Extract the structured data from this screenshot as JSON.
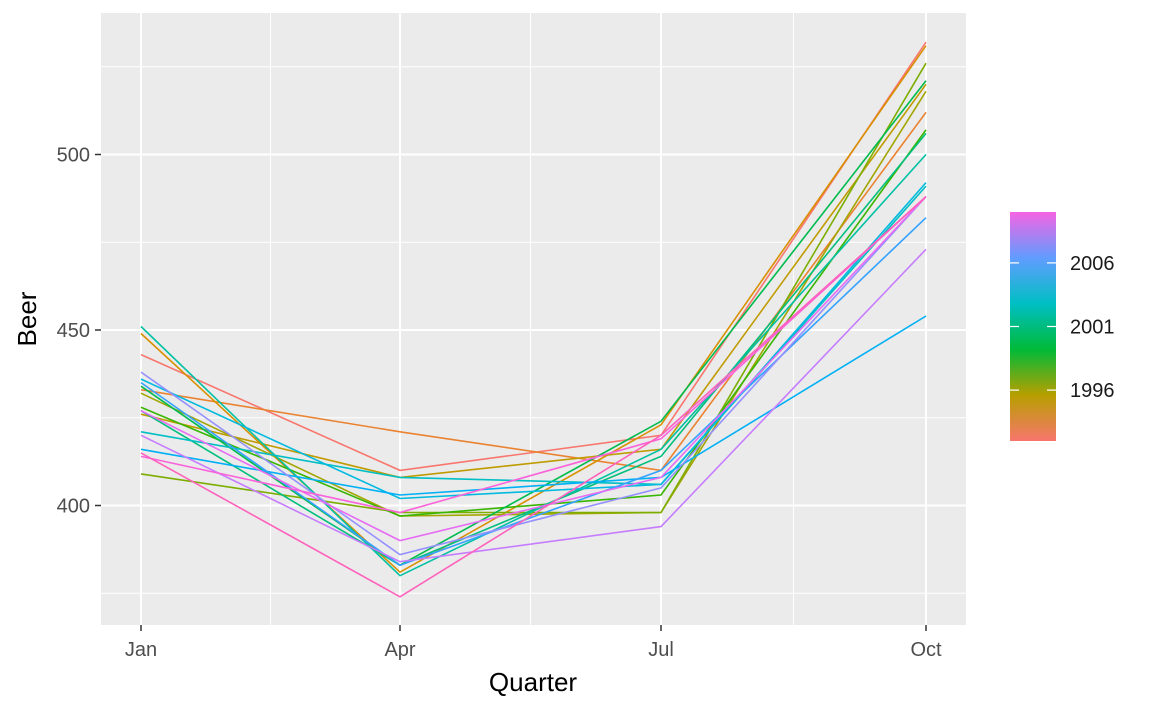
{
  "chart_data": {
    "type": "line",
    "title": "",
    "xlabel": "Quarter",
    "ylabel": "Beer",
    "categories": [
      "Jan",
      "Apr",
      "Jul",
      "Oct"
    ],
    "ylim": [
      367,
      533
    ],
    "yticks": [
      400,
      450,
      500
    ],
    "grid": true,
    "legend": {
      "placement": "right",
      "type": "colorbar",
      "range": [
        1992,
        2010
      ],
      "ticks": [
        1996,
        2001,
        2006
      ],
      "colors": [
        "#F8766D",
        "#B79F00",
        "#00BA38",
        "#00BFC4",
        "#619CFF",
        "#F564E3"
      ]
    },
    "series": [
      {
        "year": 1992,
        "values": [
          443,
          410,
          420,
          532
        ],
        "color": "#F8766D"
      },
      {
        "year": 1993,
        "values": [
          433,
          421,
          410,
          512
        ],
        "color": "#EA8331"
      },
      {
        "year": 1994,
        "values": [
          449,
          381,
          423,
          531
        ],
        "color": "#D89000"
      },
      {
        "year": 1995,
        "values": [
          426,
          408,
          416,
          520
        ],
        "color": "#C09B00"
      },
      {
        "year": 1996,
        "values": [
          432,
          397,
          398,
          518
        ],
        "color": "#A3A500"
      },
      {
        "year": 1997,
        "values": [
          409,
          398,
          398,
          526
        ],
        "color": "#7CAE00"
      },
      {
        "year": 1998,
        "values": [
          428,
          397,
          403,
          507
        ],
        "color": "#39B600"
      },
      {
        "year": 1999,
        "values": [
          434,
          383,
          424,
          521
        ],
        "color": "#00BB4E"
      },
      {
        "year": 2000,
        "values": [
          427,
          383,
          414,
          506
        ],
        "color": "#00BF7D"
      },
      {
        "year": 2001,
        "values": [
          451,
          380,
          416,
          500
        ],
        "color": "#00C1A3"
      },
      {
        "year": 2002,
        "values": [
          421,
          408,
          406,
          491
        ],
        "color": "#00BFC4"
      },
      {
        "year": 2003,
        "values": [
          436,
          402,
          406,
          492
        ],
        "color": "#00BAE0"
      },
      {
        "year": 2004,
        "values": [
          416,
          403,
          408,
          454
        ],
        "color": "#00B0F6"
      },
      {
        "year": 2005,
        "values": [
          435,
          383,
          410,
          482
        ],
        "color": "#35A2FF"
      },
      {
        "year": 2006,
        "values": [
          438,
          386,
          405,
          488
        ],
        "color": "#9590FF"
      },
      {
        "year": 2007,
        "values": [
          420,
          384,
          394,
          473
        ],
        "color": "#C77CFF"
      },
      {
        "year": 2008,
        "values": [
          427,
          390,
          408,
          488
        ],
        "color": "#E76BF3"
      },
      {
        "year": 2009,
        "values": [
          414,
          398,
          419,
          488
        ],
        "color": "#FA62DB"
      },
      {
        "year": 2010,
        "values": [
          415,
          374,
          420,
          488
        ],
        "color": "#FF62BC"
      }
    ]
  }
}
